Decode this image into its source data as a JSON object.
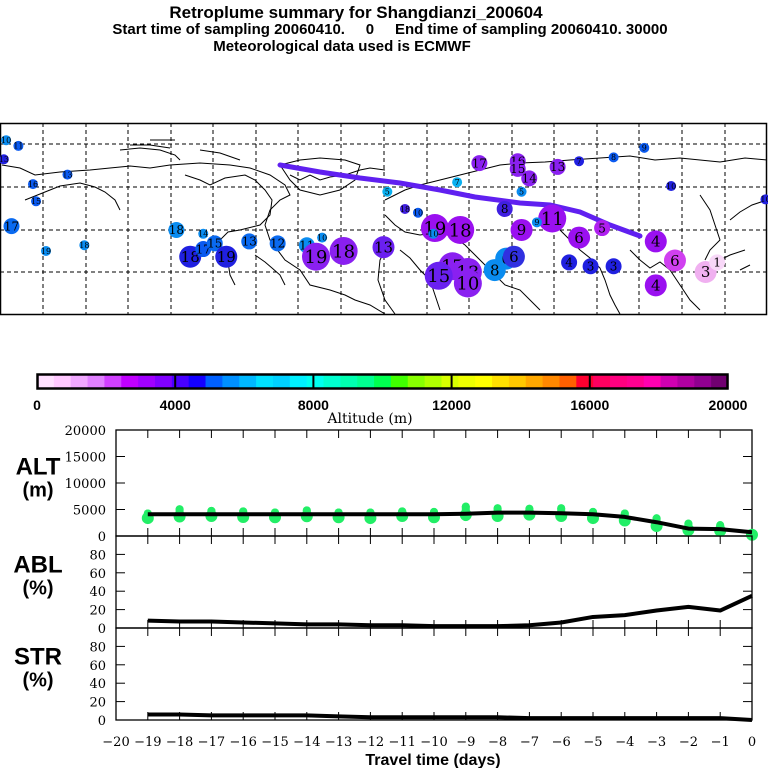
{
  "header": {
    "title": "Retroplume summary for Shangdianzi_200604",
    "subtitle": "Start time of sampling 20060410.     0     End time of sampling 20060410. 30000",
    "met_data": "Meteorological data used is ECMWF"
  },
  "map": {
    "description": "Northern hemisphere retroplume map with cluster centroids labeled by days before arrival, colored by altitude",
    "clusters": [
      {
        "label": "10",
        "days": 10,
        "lon_pos": 0.008,
        "lat_pos": 0.09,
        "size": "s",
        "color": "#0a8cf0"
      },
      {
        "label": "11",
        "days": 11,
        "lon_pos": 0.024,
        "lat_pos": 0.12,
        "size": "s",
        "color": "#0a5af0"
      },
      {
        "label": "13",
        "days": 13,
        "lon_pos": 0.005,
        "lat_pos": 0.19,
        "size": "s",
        "color": "#2020e0"
      },
      {
        "label": "16",
        "days": 16,
        "lon_pos": 0.043,
        "lat_pos": 0.32,
        "size": "s",
        "color": "#0a5af0"
      },
      {
        "label": "13",
        "days": 13,
        "lon_pos": 0.088,
        "lat_pos": 0.27,
        "size": "s",
        "color": "#0a5af0"
      },
      {
        "label": "15",
        "days": 15,
        "lon_pos": 0.047,
        "lat_pos": 0.41,
        "size": "s",
        "color": "#0a5af0"
      },
      {
        "label": "17",
        "days": 17,
        "lon_pos": 0.015,
        "lat_pos": 0.54,
        "size": "m",
        "color": "#0a6af0"
      },
      {
        "label": "19",
        "days": 19,
        "lon_pos": 0.06,
        "lat_pos": 0.67,
        "size": "s",
        "color": "#0a8cf0"
      },
      {
        "label": "18",
        "days": 18,
        "lon_pos": 0.11,
        "lat_pos": 0.64,
        "size": "s",
        "color": "#0a8cf0"
      },
      {
        "label": "18",
        "days": 18,
        "lon_pos": 0.23,
        "lat_pos": 0.56,
        "size": "m",
        "color": "#0a8cf0"
      },
      {
        "label": "18",
        "days": 18,
        "lon_pos": 0.248,
        "lat_pos": 0.7,
        "size": "l",
        "color": "#2020e0"
      },
      {
        "label": "17",
        "days": 17,
        "lon_pos": 0.265,
        "lat_pos": 0.66,
        "size": "m",
        "color": "#0a5af0"
      },
      {
        "label": "14",
        "days": 14,
        "lon_pos": 0.265,
        "lat_pos": 0.58,
        "size": "s",
        "color": "#0a8cf0"
      },
      {
        "label": "15",
        "days": 15,
        "lon_pos": 0.28,
        "lat_pos": 0.63,
        "size": "m",
        "color": "#0a6af0"
      },
      {
        "label": "19",
        "days": 19,
        "lon_pos": 0.295,
        "lat_pos": 0.7,
        "size": "l",
        "color": "#2020e0"
      },
      {
        "label": "13",
        "days": 13,
        "lon_pos": 0.325,
        "lat_pos": 0.62,
        "size": "m",
        "color": "#0a6af0"
      },
      {
        "label": "12",
        "days": 12,
        "lon_pos": 0.362,
        "lat_pos": 0.63,
        "size": "m",
        "color": "#0a6af0"
      },
      {
        "label": "11",
        "days": 11,
        "lon_pos": 0.4,
        "lat_pos": 0.64,
        "size": "m",
        "color": "#0a8cf0"
      },
      {
        "label": "10",
        "days": 10,
        "lon_pos": 0.42,
        "lat_pos": 0.6,
        "size": "s",
        "color": "#0a8cf0"
      },
      {
        "label": "19",
        "days": 19,
        "lon_pos": 0.412,
        "lat_pos": 0.7,
        "size": "xl",
        "color": "#8a20f0"
      },
      {
        "label": "18",
        "days": 18,
        "lon_pos": 0.448,
        "lat_pos": 0.67,
        "size": "xl",
        "color": "#8a20f0"
      },
      {
        "label": "13",
        "days": 13,
        "lon_pos": 0.5,
        "lat_pos": 0.65,
        "size": "l",
        "color": "#6a20f0"
      },
      {
        "label": "19",
        "days": 19,
        "lon_pos": 0.567,
        "lat_pos": 0.55,
        "size": "xl",
        "color": "#9a10f0"
      },
      {
        "label": "18",
        "days": 18,
        "lon_pos": 0.6,
        "lat_pos": 0.56,
        "size": "xl",
        "color": "#9a10f0"
      },
      {
        "label": "17",
        "days": 17,
        "lon_pos": 0.59,
        "lat_pos": 0.75,
        "size": "xl",
        "color": "#8a20f0"
      },
      {
        "label": "15",
        "days": 15,
        "lon_pos": 0.572,
        "lat_pos": 0.8,
        "size": "xl",
        "color": "#6a20f0"
      },
      {
        "label": "13",
        "days": 13,
        "lon_pos": 0.61,
        "lat_pos": 0.78,
        "size": "xl",
        "color": "#8a20f0"
      },
      {
        "label": "10",
        "days": 10,
        "lon_pos": 0.61,
        "lat_pos": 0.84,
        "size": "xl",
        "color": "#8a20f0"
      },
      {
        "label": "8",
        "days": 8,
        "lon_pos": 0.645,
        "lat_pos": 0.77,
        "size": "l",
        "color": "#0a8cf0"
      },
      {
        "label": "6",
        "days": 6,
        "lon_pos": 0.66,
        "lat_pos": 0.71,
        "size": "l",
        "color": "#0a8cf0"
      },
      {
        "label": "17",
        "days": 17,
        "lon_pos": 0.625,
        "lat_pos": 0.21,
        "size": "m",
        "color": "#8a20f0"
      },
      {
        "label": "16",
        "days": 16,
        "lon_pos": 0.675,
        "lat_pos": 0.2,
        "size": "m",
        "color": "#8a20f0"
      },
      {
        "label": "15",
        "days": 15,
        "lon_pos": 0.675,
        "lat_pos": 0.24,
        "size": "m",
        "color": "#8a20f0"
      },
      {
        "label": "14",
        "days": 14,
        "lon_pos": 0.69,
        "lat_pos": 0.29,
        "size": "m",
        "color": "#8a20f0"
      },
      {
        "label": "13",
        "days": 13,
        "lon_pos": 0.727,
        "lat_pos": 0.23,
        "size": "m",
        "color": "#8a20f0"
      },
      {
        "label": "7",
        "days": 7,
        "lon_pos": 0.596,
        "lat_pos": 0.31,
        "size": "s",
        "color": "#0ab0f0"
      },
      {
        "label": "5",
        "days": 5,
        "lon_pos": 0.68,
        "lat_pos": 0.36,
        "size": "s",
        "color": "#0a8cf0"
      },
      {
        "label": "8",
        "days": 8,
        "lon_pos": 0.658,
        "lat_pos": 0.45,
        "size": "m",
        "color": "#4020e0"
      },
      {
        "label": "11",
        "days": 11,
        "lon_pos": 0.72,
        "lat_pos": 0.5,
        "size": "xl",
        "color": "#9a10f0"
      },
      {
        "label": "9",
        "days": 9,
        "lon_pos": 0.68,
        "lat_pos": 0.56,
        "size": "l",
        "color": "#9a10f0"
      },
      {
        "label": "6",
        "days": 6,
        "lon_pos": 0.755,
        "lat_pos": 0.6,
        "size": "l",
        "color": "#9a10f0"
      },
      {
        "label": "5",
        "days": 5,
        "lon_pos": 0.785,
        "lat_pos": 0.55,
        "size": "m",
        "color": "#b020f0"
      },
      {
        "label": "6",
        "days": 6,
        "lon_pos": 0.67,
        "lat_pos": 0.7,
        "size": "l",
        "color": "#3030e0"
      },
      {
        "label": "4",
        "days": 4,
        "lon_pos": 0.742,
        "lat_pos": 0.73,
        "size": "m",
        "color": "#2020e0"
      },
      {
        "label": "3",
        "days": 3,
        "lon_pos": 0.77,
        "lat_pos": 0.75,
        "size": "m",
        "color": "#2020e0"
      },
      {
        "label": "3",
        "days": 3,
        "lon_pos": 0.8,
        "lat_pos": 0.75,
        "size": "m",
        "color": "#2020e0"
      },
      {
        "label": "4",
        "days": 4,
        "lon_pos": 0.855,
        "lat_pos": 0.62,
        "size": "l",
        "color": "#9a10f0"
      },
      {
        "label": "4",
        "days": 4,
        "lon_pos": 0.855,
        "lat_pos": 0.85,
        "size": "l",
        "color": "#9a10f0"
      },
      {
        "label": "6",
        "days": 6,
        "lon_pos": 0.88,
        "lat_pos": 0.72,
        "size": "l",
        "color": "#d040f0"
      },
      {
        "label": "3",
        "days": 3,
        "lon_pos": 0.92,
        "lat_pos": 0.78,
        "size": "l",
        "color": "#f0b0f0"
      },
      {
        "label": "1",
        "days": 1,
        "lon_pos": 0.935,
        "lat_pos": 0.73,
        "size": "m",
        "color": "#f8d8f8"
      },
      {
        "label": "9",
        "days": 9,
        "lon_pos": 0.7,
        "lat_pos": 0.52,
        "size": "s",
        "color": "#0a8cf0"
      },
      {
        "label": "9",
        "days": 9,
        "lon_pos": 0.84,
        "lat_pos": 0.13,
        "size": "s",
        "color": "#0a5af0"
      },
      {
        "label": "8",
        "days": 8,
        "lon_pos": 0.8,
        "lat_pos": 0.18,
        "size": "s",
        "color": "#0a5af0"
      },
      {
        "label": "7",
        "days": 7,
        "lon_pos": 0.755,
        "lat_pos": 0.2,
        "size": "s",
        "color": "#2020e0"
      },
      {
        "label": "10",
        "days": 10,
        "lon_pos": 0.875,
        "lat_pos": 0.33,
        "size": "s",
        "color": "#2020e0"
      },
      {
        "label": "10",
        "days": 10,
        "lon_pos": 0.998,
        "lat_pos": 0.4,
        "size": "s",
        "color": "#2020e0"
      },
      {
        "label": "18",
        "days": 18,
        "lon_pos": 0.528,
        "lat_pos": 0.45,
        "size": "s",
        "color": "#4020e0"
      },
      {
        "label": "10",
        "days": 10,
        "lon_pos": 0.545,
        "lat_pos": 0.47,
        "size": "s",
        "color": "#0a5af0"
      },
      {
        "label": "10",
        "days": 10,
        "lon_pos": 0.565,
        "lat_pos": 0.58,
        "size": "s",
        "color": "#0a8cf0"
      },
      {
        "label": "5",
        "days": 5,
        "lon_pos": 0.505,
        "lat_pos": 0.36,
        "size": "s",
        "color": "#0ab0f0"
      }
    ],
    "plume_line_color": "#6020f0"
  },
  "colorbar": {
    "title": "Altitude (m)",
    "tick_labels": [
      "0",
      "4000",
      "8000",
      "12000",
      "16000",
      "20000"
    ],
    "range": [
      0,
      20000
    ],
    "colors": [
      "#ffe0ff",
      "#ffc8ff",
      "#f0a8ff",
      "#e080ff",
      "#d040ff",
      "#c000ff",
      "#a000ff",
      "#8000ff",
      "#4800ff",
      "#1400ff",
      "#0060ff",
      "#0090ff",
      "#00b8ff",
      "#00e0ff",
      "#00d0ff",
      "#00f0ff",
      "#00fff0",
      "#00ffd0",
      "#00ffb0",
      "#00ff90",
      "#00ff50",
      "#40ff00",
      "#88ff00",
      "#b0ff00",
      "#d8ff00",
      "#eeff00",
      "#ffff00",
      "#ffe000",
      "#ffc800",
      "#ffa800",
      "#ff8800",
      "#ff6000",
      "#ff0030",
      "#ff0060",
      "#ff0080",
      "#ff0090",
      "#ff00b0",
      "#d000b0",
      "#b000a0",
      "#900090",
      "#700070"
    ]
  },
  "chart_data": [
    {
      "type": "line",
      "panel": "ALT",
      "ylabel": "ALT\n(m)",
      "ylabel_line1": "ALT",
      "ylabel_line2": "(m)",
      "ylim": [
        0,
        20000
      ],
      "yticks": [
        0,
        5000,
        10000,
        15000,
        20000
      ],
      "ytick_labels": [
        "0",
        "5000",
        "10000",
        "15000",
        "20000"
      ],
      "x": [
        -19,
        -18,
        -17,
        -16,
        -15,
        -14,
        -13,
        -12,
        -11,
        -10,
        -9,
        -8,
        -7,
        -6,
        -5,
        -4,
        -3,
        -2,
        -1,
        0
      ],
      "series": [
        {
          "name": "mean altitude",
          "values": [
            4100,
            4100,
            4100,
            4100,
            4100,
            4100,
            4100,
            4100,
            4100,
            4100,
            4200,
            4400,
            4400,
            4300,
            4100,
            3600,
            2600,
            1400,
            1300,
            700
          ]
        }
      ],
      "scatter_spread": [
        {
          "x": -19,
          "min": 2900,
          "max": 5000
        },
        {
          "x": -18,
          "min": 2700,
          "max": 5800
        },
        {
          "x": -17,
          "min": 3200,
          "max": 5500
        },
        {
          "x": -16,
          "min": 2900,
          "max": 5400
        },
        {
          "x": -15,
          "min": 3000,
          "max": 5200
        },
        {
          "x": -14,
          "min": 3000,
          "max": 5600
        },
        {
          "x": -13,
          "min": 3000,
          "max": 5200
        },
        {
          "x": -12,
          "min": 2700,
          "max": 5200
        },
        {
          "x": -11,
          "min": 3300,
          "max": 5400
        },
        {
          "x": -10,
          "min": 2900,
          "max": 5300
        },
        {
          "x": -9,
          "min": 2800,
          "max": 6300
        },
        {
          "x": -8,
          "min": 2700,
          "max": 6000
        },
        {
          "x": -7,
          "min": 3300,
          "max": 5900
        },
        {
          "x": -6,
          "min": 2700,
          "max": 6000
        },
        {
          "x": -5,
          "min": 2600,
          "max": 5300
        },
        {
          "x": -4,
          "min": 2000,
          "max": 5000
        },
        {
          "x": -3,
          "min": 800,
          "max": 4100
        },
        {
          "x": -2,
          "min": 300,
          "max": 3100
        },
        {
          "x": -1,
          "min": 300,
          "max": 2800
        },
        {
          "x": 0,
          "min": 300,
          "max": 1300
        }
      ],
      "scatter_color": "#22ee66"
    },
    {
      "type": "line",
      "panel": "ABL",
      "ylabel_line1": "ABL",
      "ylabel_line2": "(%)",
      "ylim": [
        0,
        100
      ],
      "yticks": [
        0,
        20,
        40,
        60,
        80
      ],
      "ytick_labels": [
        "0",
        "20",
        "40",
        "60",
        "80"
      ],
      "x": [
        -19,
        -18,
        -17,
        -16,
        -15,
        -14,
        -13,
        -12,
        -11,
        -10,
        -9,
        -8,
        -7,
        -6,
        -5,
        -4,
        -3,
        -2,
        -1,
        0
      ],
      "series": [
        {
          "name": "ABL fraction",
          "values": [
            8,
            7,
            7,
            6,
            5,
            4,
            4,
            3,
            3,
            2,
            2,
            2,
            3,
            6,
            12,
            14,
            19,
            23,
            19,
            35
          ]
        }
      ]
    },
    {
      "type": "line",
      "panel": "STR",
      "ylabel_line1": "STR",
      "ylabel_line2": "(%)",
      "ylim": [
        0,
        100
      ],
      "yticks": [
        0,
        20,
        40,
        60,
        80
      ],
      "ytick_labels": [
        "0",
        "20",
        "40",
        "60",
        "80"
      ],
      "x": [
        -19,
        -18,
        -17,
        -16,
        -15,
        -14,
        -13,
        -12,
        -11,
        -10,
        -9,
        -8,
        -7,
        -6,
        -5,
        -4,
        -3,
        -2,
        -1,
        0
      ],
      "series": [
        {
          "name": "stratosphere fraction",
          "values": [
            6,
            6,
            5,
            5,
            5,
            5,
            4,
            3,
            3,
            3,
            3,
            3,
            2,
            2,
            2,
            2,
            2,
            2,
            2,
            0
          ]
        }
      ],
      "xlabel": "Travel time (days)",
      "xlim": [
        -20,
        0
      ],
      "xticks": [
        -20,
        -19,
        -18,
        -17,
        -16,
        -15,
        -14,
        -13,
        -12,
        -11,
        -10,
        -9,
        -8,
        -7,
        -6,
        -5,
        -4,
        -3,
        -2,
        -1,
        0
      ],
      "xtick_labels": [
        "−20",
        "−19",
        "−18",
        "−17",
        "−16",
        "−15",
        "−14",
        "−13",
        "−12",
        "−11",
        "−10",
        "−9",
        "−8",
        "−7",
        "−6",
        "−5",
        "−4",
        "−3",
        "−2",
        "−1",
        "0"
      ]
    }
  ]
}
